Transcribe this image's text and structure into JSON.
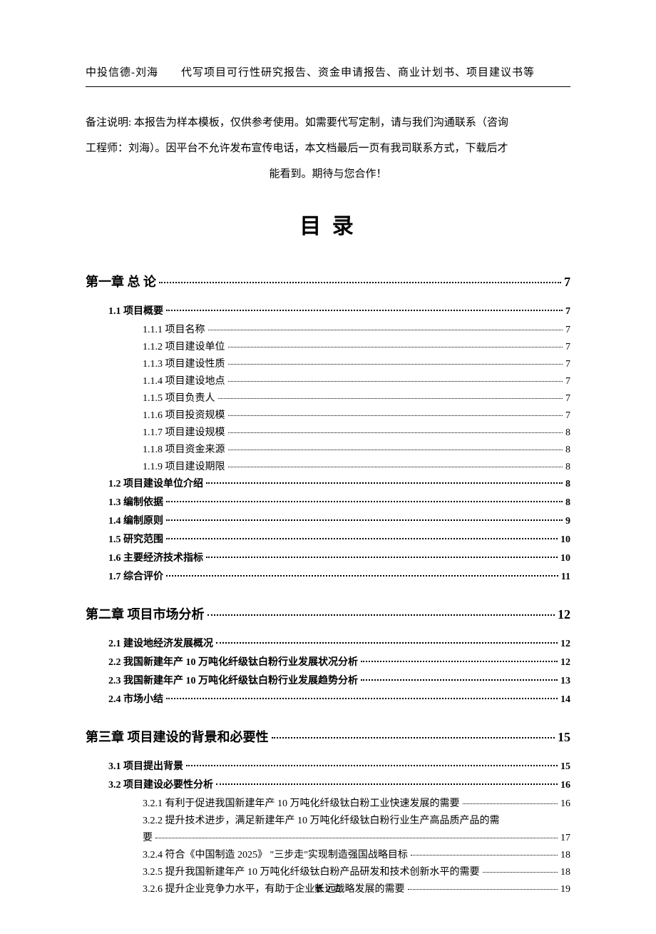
{
  "header": "中投信德-刘海　　代写项目可行性研究报告、资金申请报告、商业计划书、项目建议书等",
  "note": {
    "line1": "备注说明: 本报告为样本模板，仅供参考使用。如需要代写定制，请与我们沟通联系（咨询",
    "line2": "工程师：刘海）。因平台不允许发布宣传电话，本文档最后一页有我司联系方式，下载后才",
    "line3": "能看到。期待与您合作！"
  },
  "tocTitle": "目 录",
  "toc": {
    "ch1": {
      "label": "第一章 总 论",
      "page": "7"
    },
    "s1_1": {
      "label": "1.1 项目概要",
      "page": "7"
    },
    "s1_1_1": {
      "label": "1.1.1 项目名称",
      "page": "7"
    },
    "s1_1_2": {
      "label": "1.1.2 项目建设单位",
      "page": "7"
    },
    "s1_1_3": {
      "label": "1.1.3 项目建设性质",
      "page": "7"
    },
    "s1_1_4": {
      "label": "1.1.4 项目建设地点",
      "page": "7"
    },
    "s1_1_5": {
      "label": "1.1.5 项目负责人",
      "page": "7"
    },
    "s1_1_6": {
      "label": "1.1.6 项目投资规模",
      "page": "7"
    },
    "s1_1_7": {
      "label": "1.1.7 项目建设规模",
      "page": "8"
    },
    "s1_1_8": {
      "label": "1.1.8 项目资金来源",
      "page": "8"
    },
    "s1_1_9": {
      "label": "1.1.9 项目建设期限",
      "page": "8"
    },
    "s1_2": {
      "label": "1.2 项目建设单位介绍",
      "page": "8"
    },
    "s1_3": {
      "label": "1.3 编制依据",
      "page": "8"
    },
    "s1_4": {
      "label": "1.4 编制原则",
      "page": "9"
    },
    "s1_5": {
      "label": "1.5 研究范围",
      "page": "10"
    },
    "s1_6": {
      "label": "1.6 主要经济技术指标",
      "page": "10"
    },
    "s1_7": {
      "label": "1.7 综合评价",
      "page": "11"
    },
    "ch2": {
      "label": "第二章 项目市场分析",
      "page": "12"
    },
    "s2_1": {
      "label": "2.1 建设地经济发展概况",
      "page": "12"
    },
    "s2_2": {
      "label": "2.2 我国新建年产 10 万吨化纤级钛白粉行业发展状况分析",
      "page": "12"
    },
    "s2_3": {
      "label": "2.3 我国新建年产 10 万吨化纤级钛白粉行业发展趋势分析",
      "page": "13"
    },
    "s2_4": {
      "label": "2.4 市场小结",
      "page": "14"
    },
    "ch3": {
      "label": "第三章 项目建设的背景和必要性",
      "page": "15"
    },
    "s3_1": {
      "label": "3.1 项目提出背景",
      "page": "15"
    },
    "s3_2": {
      "label": "3.2 项目建设必要性分析",
      "page": "16"
    },
    "s3_2_1": {
      "label": "3.2.1 有利于促进我国新建年产 10 万吨化纤级钛白粉工业快速发展的需要",
      "page": "16"
    },
    "s3_2_2_l1": "3.2.2 提升技术进步，满足新建年产 10 万吨化纤级钛白粉行业生产高品质产品的需",
    "s3_2_2_l2": {
      "label": "要",
      "page": "17"
    },
    "s3_2_4": {
      "label": "3.2.4 符合《中国制造 2025》 \"三步走\"实现制造强国战略目标",
      "page": "18"
    },
    "s3_2_5": {
      "label": "3.2.5 提升我国新建年产 10 万吨化纤级钛白粉产品研发和技术创新水平的需要",
      "page": "18"
    },
    "s3_2_6": {
      "label": "3.2.6 提升企业竞争力水平，有助于企业长远战略发展的需要",
      "page": "19"
    }
  },
  "footer": "第 2 页"
}
